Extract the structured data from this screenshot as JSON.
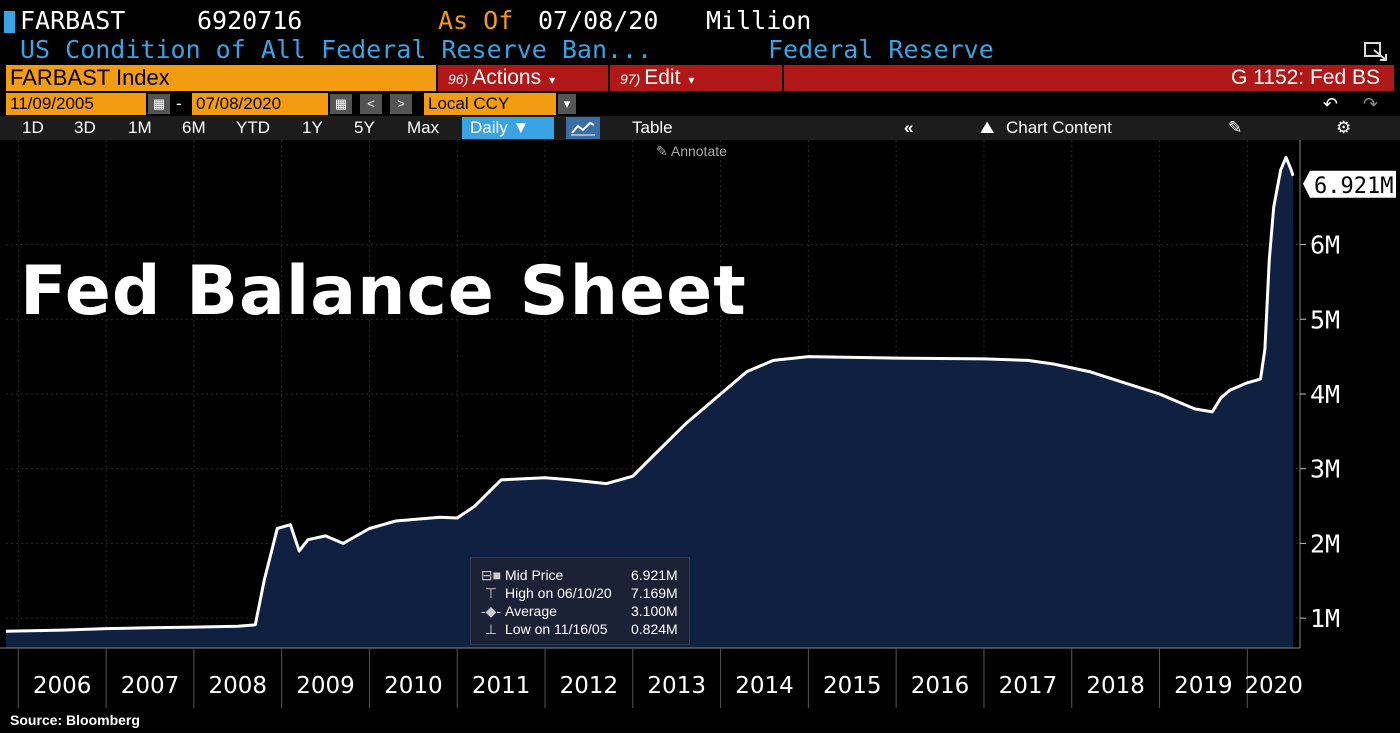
{
  "header": {
    "ticker": "FARBAST",
    "last_value": "6920716",
    "as_of_label": "As Of",
    "as_of_date": "07/08/20",
    "units": "Million",
    "description": "US Condition of All Federal Reserve Ban...",
    "source_name": "Federal Reserve"
  },
  "toolbar": {
    "security": "FARBAST Index",
    "actions_num": "96)",
    "actions_label": "Actions",
    "edit_num": "97)",
    "edit_label": "Edit",
    "function_label": "G 1152: Fed BS",
    "start_date": "11/09/2005",
    "end_date": "07/08/2020",
    "date_sep": "-",
    "currency": "Local CCY",
    "periods": [
      "1D",
      "3D",
      "1M",
      "6M",
      "YTD",
      "1Y",
      "5Y",
      "Max"
    ],
    "frequency": "Daily",
    "table_label": "Table",
    "chart_content_label": "Chart Content",
    "annotate_label": "Annotate"
  },
  "overlay_title": "Fed Balance Sheet",
  "legend": {
    "rows": [
      {
        "label": "Mid Price",
        "value": "6.921M"
      },
      {
        "label": "High on 06/10/20",
        "value": "7.169M"
      },
      {
        "label": "Average",
        "value": "3.100M"
      },
      {
        "label": "Low on 11/16/05",
        "value": "0.824M"
      }
    ]
  },
  "last_value_tag": "6.921M",
  "source_text": "Source: Bloomberg",
  "colors": {
    "accent_orange": "#f39c12",
    "button_red": "#b01818",
    "accent_blue": "#3aa3e3",
    "area_fill": "#0f2040",
    "line": "#ffffff"
  },
  "chart_data": {
    "type": "area",
    "y_unit": "Million USD (trillions shown as M)",
    "ylim": [
      0.6,
      7.4
    ],
    "y_ticks": [
      1,
      2,
      3,
      4,
      5,
      6
    ],
    "y_tick_labels": [
      "1M",
      "2M",
      "3M",
      "4M",
      "5M",
      "6M"
    ],
    "x_range": [
      2005.86,
      2020.6
    ],
    "x_tick_labels": [
      "2006",
      "2007",
      "2008",
      "2009",
      "2010",
      "2011",
      "2012",
      "2013",
      "2014",
      "2015",
      "2016",
      "2017",
      "2018",
      "2019",
      "2020"
    ],
    "grid": true,
    "series": [
      {
        "name": "FARBAST Index",
        "x": [
          2005.86,
          2006.5,
          2007.0,
          2007.5,
          2008.0,
          2008.5,
          2008.7,
          2008.8,
          2008.95,
          2009.1,
          2009.2,
          2009.3,
          2009.5,
          2009.7,
          2010.0,
          2010.3,
          2010.8,
          2011.0,
          2011.2,
          2011.5,
          2012.0,
          2012.3,
          2012.7,
          2013.0,
          2013.3,
          2013.6,
          2014.0,
          2014.3,
          2014.6,
          2015.0,
          2016.0,
          2017.0,
          2017.5,
          2017.8,
          2018.2,
          2018.6,
          2019.0,
          2019.4,
          2019.6,
          2019.7,
          2019.8,
          2020.0,
          2020.15,
          2020.2,
          2020.25,
          2020.3,
          2020.38,
          2020.44,
          2020.5,
          2020.52
        ],
        "values": [
          0.824,
          0.84,
          0.86,
          0.87,
          0.88,
          0.89,
          0.91,
          1.5,
          2.2,
          2.25,
          1.9,
          2.05,
          2.1,
          2.0,
          2.2,
          2.3,
          2.35,
          2.34,
          2.5,
          2.85,
          2.88,
          2.85,
          2.8,
          2.9,
          3.25,
          3.6,
          4.0,
          4.3,
          4.45,
          4.5,
          4.48,
          4.47,
          4.45,
          4.4,
          4.3,
          4.15,
          4.0,
          3.8,
          3.76,
          3.95,
          4.05,
          4.15,
          4.2,
          4.6,
          5.8,
          6.5,
          7.0,
          7.169,
          7.0,
          6.921
        ]
      }
    ]
  }
}
